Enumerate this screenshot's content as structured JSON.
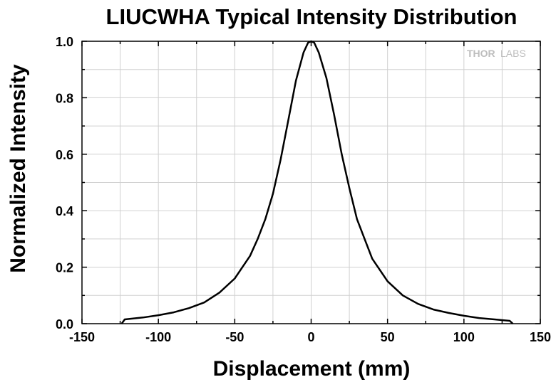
{
  "chart_data": {
    "type": "line",
    "title": "LIUCWHA Typical Intensity Distribution",
    "xlabel": "Displacement (mm)",
    "ylabel": "Normalized Intensity",
    "xlim": [
      -150,
      150
    ],
    "ylim": [
      0.0,
      1.0
    ],
    "x_ticks": [
      -150,
      -100,
      -50,
      0,
      50,
      100,
      150
    ],
    "x_tick_labels": [
      "-150",
      "-100",
      "-50",
      "0",
      "50",
      "100",
      "150"
    ],
    "y_ticks": [
      0.0,
      0.2,
      0.4,
      0.6,
      0.8,
      1.0
    ],
    "y_tick_labels": [
      "0.0",
      "0.2",
      "0.4",
      "0.6",
      "0.8",
      "1.0"
    ],
    "grid": true,
    "series": [
      {
        "color": "#000000",
        "x": [
          -124,
          -122,
          -110,
          -100,
          -90,
          -80,
          -70,
          -60,
          -50,
          -40,
          -35,
          -30,
          -25,
          -20,
          -15,
          -10,
          -5,
          -2,
          0,
          2,
          5,
          10,
          15,
          20,
          25,
          30,
          35,
          40,
          50,
          60,
          70,
          80,
          90,
          100,
          110,
          120,
          130,
          132
        ],
        "y": [
          0.0,
          0.015,
          0.022,
          0.03,
          0.04,
          0.055,
          0.075,
          0.11,
          0.16,
          0.24,
          0.3,
          0.37,
          0.46,
          0.58,
          0.72,
          0.86,
          0.96,
          0.995,
          1.0,
          0.995,
          0.96,
          0.87,
          0.74,
          0.6,
          0.48,
          0.37,
          0.3,
          0.23,
          0.15,
          0.1,
          0.07,
          0.05,
          0.038,
          0.028,
          0.02,
          0.015,
          0.01,
          0.0
        ]
      }
    ]
  },
  "logo": {
    "part1": "THOR",
    "part2": "LABS"
  }
}
